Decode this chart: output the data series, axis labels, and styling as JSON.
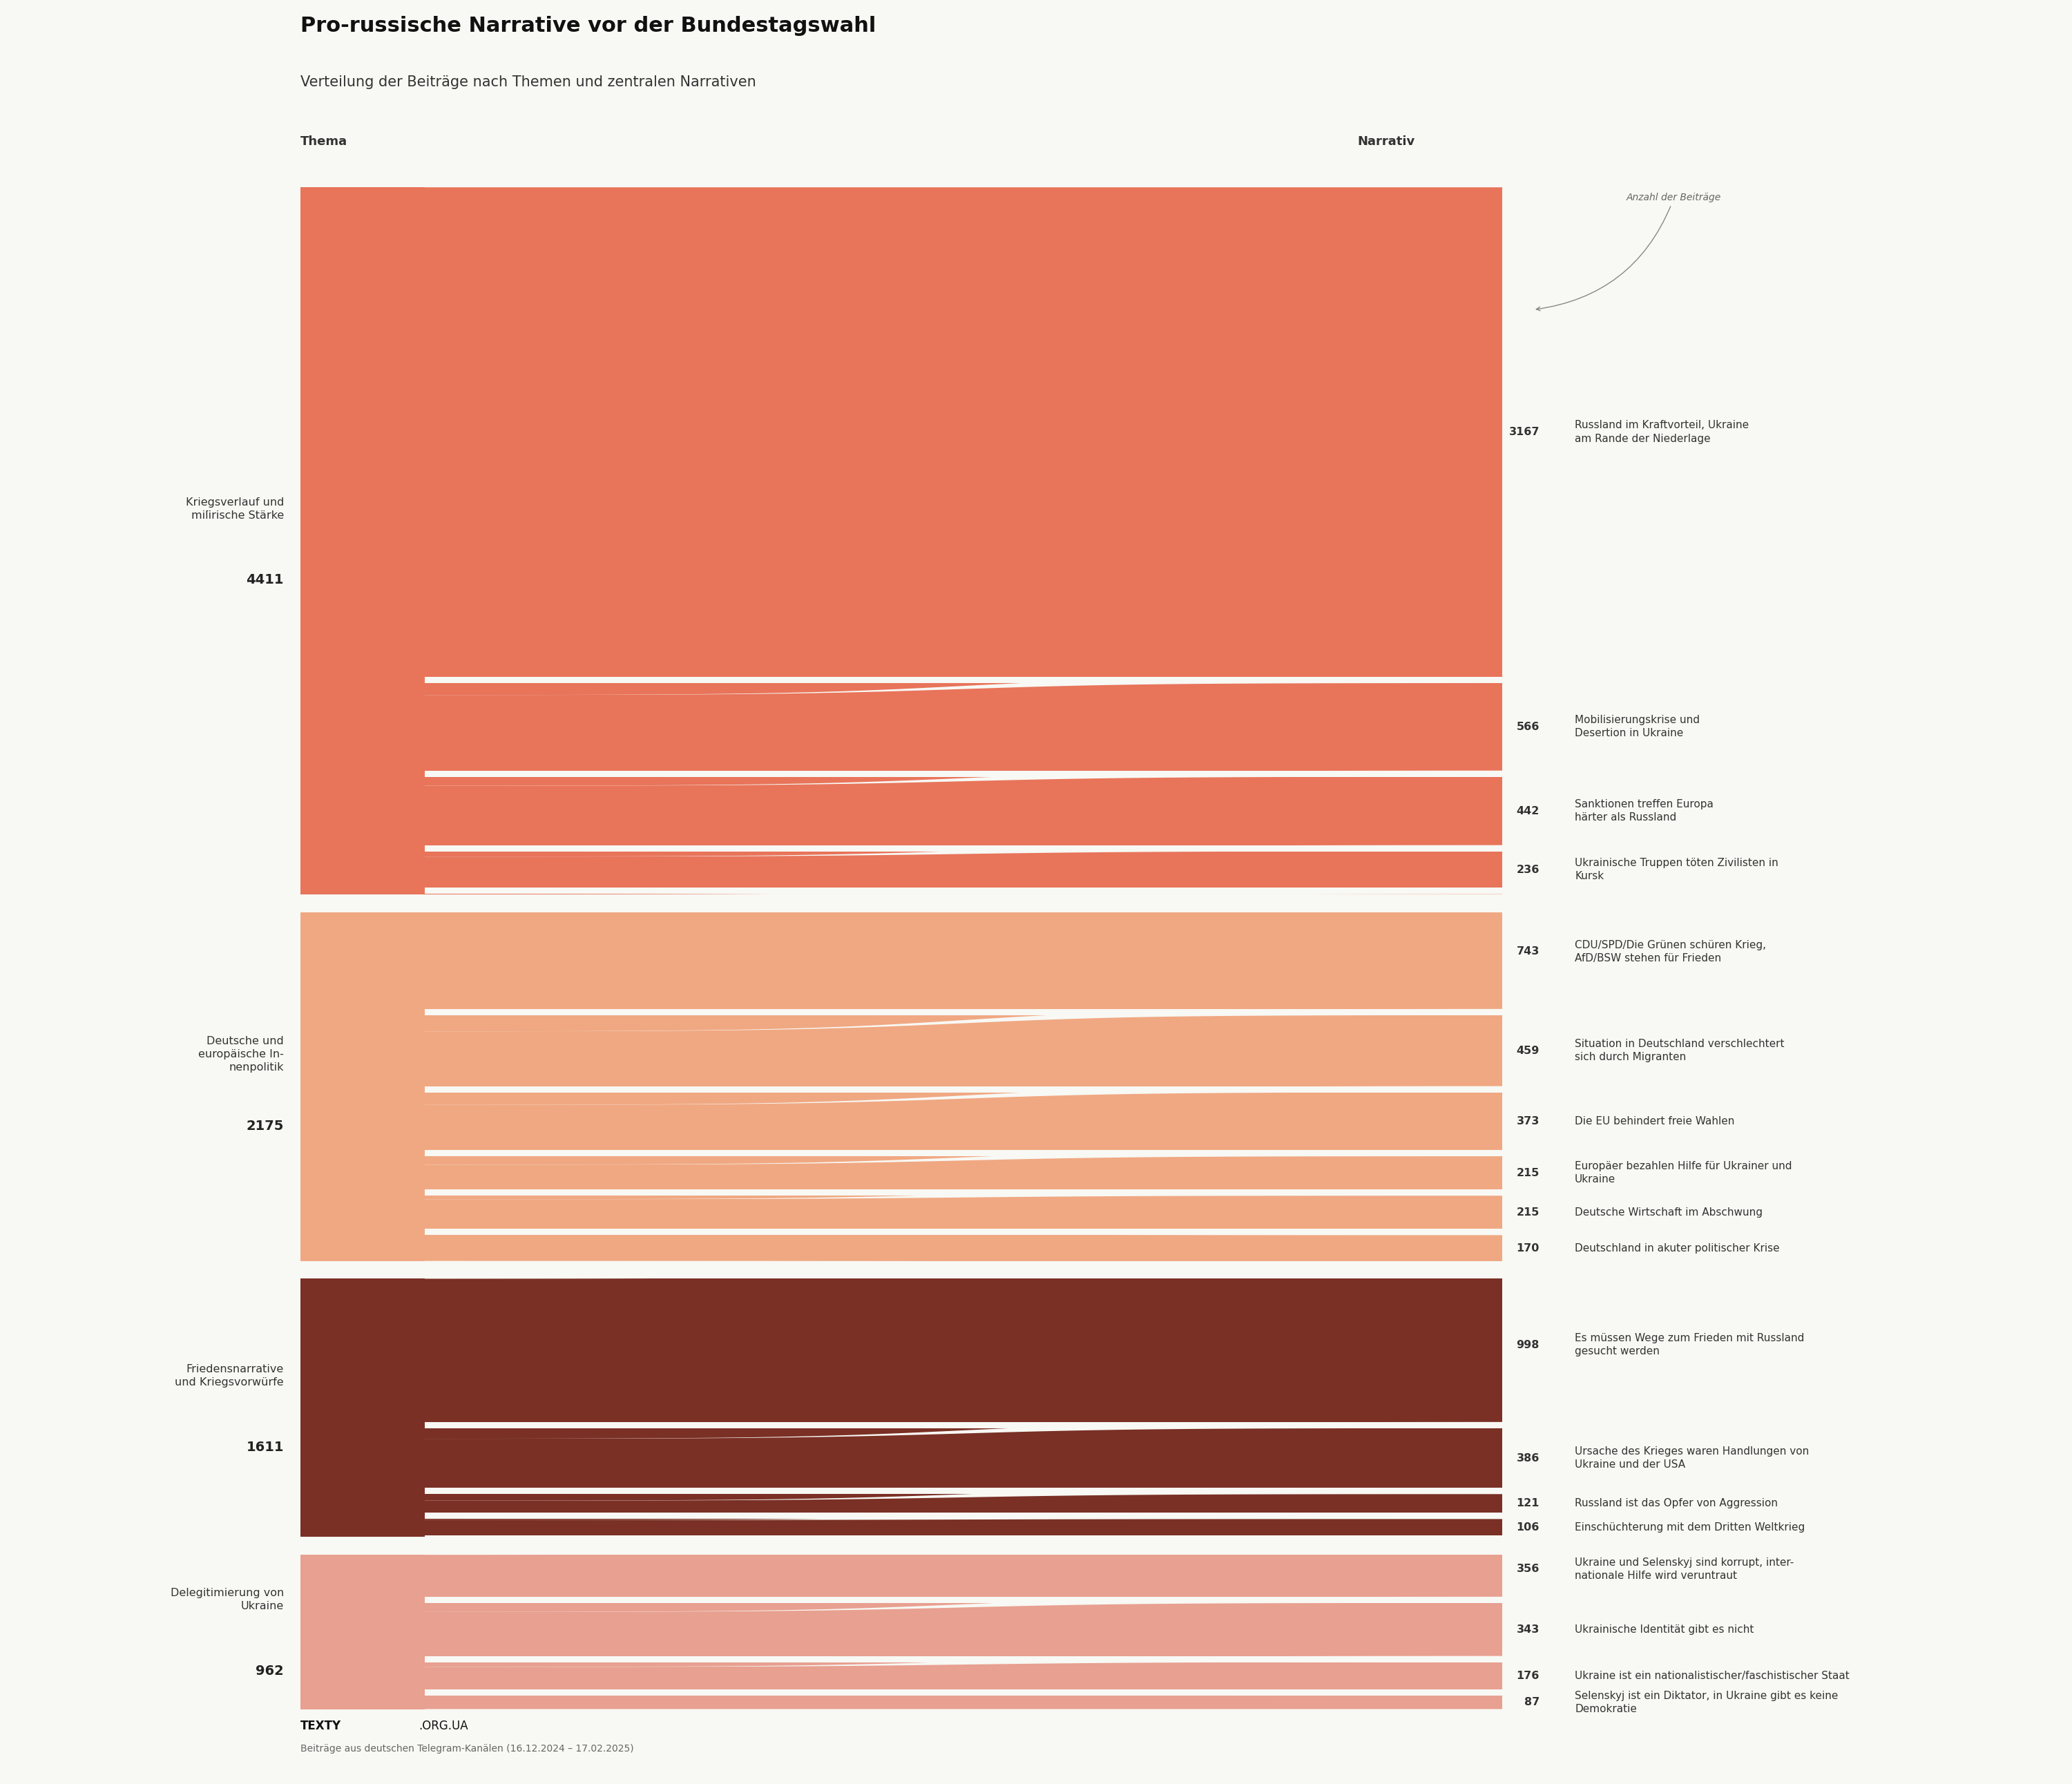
{
  "title": "Pro-russische Narrative vor der Bundestagswahl",
  "subtitle": "Verteilung der Beiträge nach Themen und zentralen Narrativen",
  "label_thema": "Thema",
  "label_narrativ": "Narrativ",
  "annotation": "Anzahl der Beiträge",
  "footer_bold": "TEXTY",
  "footer_normal": ".ORG.UA",
  "footer_sub": "Beiträge aus deutschen Telegram-Kanälen (16.12.2024 – 17.02.2025)",
  "themes": [
    {
      "name": "Kriegsverlauf und\nmilïrische Stärke",
      "value": 4411,
      "color": "#E8745A",
      "narratives": [
        {
          "value": 3167,
          "label": "Russland im Kraftvorteil, Ukraine\nam Rande der Niederlage"
        },
        {
          "value": 566,
          "label": "Mobilisierungskrise und\nDesertion in Ukraine"
        },
        {
          "value": 442,
          "label": "Sanktionen treffen Europa\nhärter als Russland"
        },
        {
          "value": 236,
          "label": "Ukrainische Truppen töten Zivilisten in\nKursk"
        }
      ]
    },
    {
      "name": "Deutsche und\neuropäische In-\nnenpolitik",
      "value": 2175,
      "color": "#F0A882",
      "narratives": [
        {
          "value": 743,
          "label": "CDU/SPD/Die Grünen schüren Krieg,\nAfD/BSW stehen für Frieden"
        },
        {
          "value": 459,
          "label": "Situation in Deutschland verschlechtert\nsich durch Migranten"
        },
        {
          "value": 373,
          "label": "Die EU behindert freie Wahlen"
        },
        {
          "value": 215,
          "label": "Europäer bezahlen Hilfe für Ukrainer und\nUkraine"
        },
        {
          "value": 215,
          "label": "Deutsche Wirtschaft im Abschwung"
        },
        {
          "value": 170,
          "label": "Deutschland in akuter politischer Krise"
        }
      ]
    },
    {
      "name": "Friedensnarrative\nund Kriegsvorwürfe",
      "value": 1611,
      "color": "#7A3025",
      "narratives": [
        {
          "value": 998,
          "label": "Es müssen Wege zum Frieden mit Russland\ngesucht werden"
        },
        {
          "value": 386,
          "label": "Ursache des Krieges waren Handlungen von\nUkraine und der USA"
        },
        {
          "value": 121,
          "label": "Russland ist das Opfer von Aggression"
        },
        {
          "value": 106,
          "label": "Einschüchterung mit dem Dritten Weltkrieg"
        }
      ]
    },
    {
      "name": "Delegitimierung von\nUkraine",
      "value": 962,
      "color": "#E8A090",
      "narratives": [
        {
          "value": 356,
          "label": "Ukraine und Selenskyj sind korrupt, inter-\nnationale Hilfe wird veruntraut"
        },
        {
          "value": 343,
          "label": "Ukrainische Identität gibt es nicht"
        },
        {
          "value": 176,
          "label": "Ukraine ist ein nationalistischer/faschistischer Staat"
        },
        {
          "value": 87,
          "label": "Selenskyj ist ein Diktator, in Ukraine gibt es keine\nDemokratie"
        }
      ]
    }
  ],
  "background_color": "#F8F8F4"
}
